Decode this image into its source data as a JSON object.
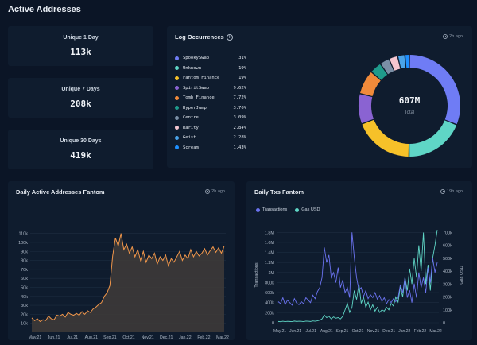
{
  "page": {
    "title": "Active Addresses"
  },
  "stats": [
    {
      "label": "Unique 1 Day",
      "value": "113k"
    },
    {
      "label": "Unique 7 Days",
      "value": "208k"
    },
    {
      "label": "Unique 30 Days",
      "value": "419k"
    }
  ],
  "log_occurrences": {
    "title": "Log Occurrences",
    "time": "2h ago",
    "total_value": "607M",
    "total_label": "Total",
    "chart_data": {
      "type": "pie",
      "labels": [
        "SpookySwap",
        "Unknown",
        "Fantom Finance",
        "SpiritSwap",
        "Tomb Finance",
        "HyperJump",
        "Centre",
        "Rarity",
        "Geist",
        "Scream"
      ],
      "display_values": [
        "31%",
        "19%",
        "19%",
        "9.62%",
        "7.72%",
        "3.76%",
        "3.09%",
        "2.84%",
        "2.28%",
        "1.43%"
      ],
      "values": [
        31,
        19,
        19,
        9.62,
        7.72,
        3.76,
        3.09,
        2.84,
        2.28,
        1.43
      ],
      "colors": [
        "#6f7cf5",
        "#5fd6c6",
        "#f6c129",
        "#8a63d2",
        "#f08a3a",
        "#1f9b8c",
        "#7a8fa6",
        "#f5c6d0",
        "#4aa3e8",
        "#1e90ff"
      ]
    }
  },
  "daily_active": {
    "title": "Daily Active Addresses Fantom",
    "time": "2h ago",
    "chart_data": {
      "type": "area",
      "x_labels": [
        "May.21",
        "Jun.21",
        "Jul.21",
        "Aug.21",
        "Sep.21",
        "Oct.21",
        "Nov.21",
        "Dec.21",
        "Jan.22",
        "Feb.22",
        "Mar.22"
      ],
      "y_ticks": [
        "10k",
        "20k",
        "30k",
        "40k",
        "50k",
        "60k",
        "70k",
        "80k",
        "90k",
        "100k",
        "110k"
      ],
      "ylim": [
        0,
        115000
      ],
      "series": [
        {
          "values": [
            16000,
            13000,
            15000,
            12000,
            14000,
            13000,
            18000,
            15000,
            14000,
            19000,
            18000,
            20000,
            17000,
            22000,
            20000,
            19000,
            21000,
            19000,
            23000,
            20000,
            24000,
            22000,
            26000,
            28000,
            31000,
            33000,
            40000,
            44000,
            52000,
            85000,
            105000,
            96000,
            110000,
            92000,
            98000,
            88000,
            95000,
            84000,
            92000,
            80000,
            90000,
            78000,
            86000,
            82000,
            88000,
            76000,
            84000,
            80000,
            86000,
            74000,
            82000,
            78000,
            84000,
            90000,
            80000,
            86000,
            82000,
            92000,
            84000,
            90000,
            85000,
            88000,
            93000,
            86000,
            91000,
            95000,
            89000,
            94000,
            88000,
            96000
          ]
        }
      ]
    }
  },
  "daily_txs": {
    "title": "Daily Txs Fantom",
    "time": "19h ago",
    "legend": [
      {
        "name": "Transactions",
        "color": "#6b73f0"
      },
      {
        "name": "Gas USD",
        "color": "#5fd6c6"
      }
    ],
    "chart_data": {
      "type": "line",
      "x_labels": [
        "May.21",
        "Jun.21",
        "Jul.21",
        "Aug.21",
        "Sep.21",
        "Oct.21",
        "Nov.21",
        "Dec.21",
        "Jan.22",
        "Feb.22",
        "Mar.22"
      ],
      "ylabel": "Transactions",
      "ylabel_right": "Gas USD",
      "y_ticks": [
        "0",
        "200k",
        "400k",
        "600k",
        "800k",
        "1M",
        "1.2M",
        "1.4M",
        "1.6M",
        "1.8M"
      ],
      "y_ticks_right": [
        "0",
        "100k",
        "200k",
        "300k",
        "400k",
        "500k",
        "600k",
        "700k"
      ],
      "ylim": [
        0,
        1900000
      ],
      "ylim_right": [
        0,
        740000
      ],
      "series": [
        {
          "name": "Transactions",
          "values": [
            420000,
            380000,
            500000,
            360000,
            450000,
            400000,
            350000,
            480000,
            390000,
            360000,
            420000,
            380000,
            500000,
            450000,
            400000,
            550000,
            480000,
            620000,
            700000,
            900000,
            1500000,
            1200000,
            1350000,
            900000,
            1000000,
            800000,
            1100000,
            700000,
            850000,
            600000,
            700000,
            500000,
            1800000,
            1300000,
            900000,
            650000,
            700000,
            520000,
            640000,
            480000,
            560000,
            500000,
            600000,
            470000,
            540000,
            420000,
            500000,
            380000,
            460000,
            400000,
            480000,
            420000,
            500000,
            760000,
            600000,
            900000,
            500000,
            650000,
            400000,
            780000,
            500000,
            1000000,
            700000,
            900000,
            600000,
            1100000,
            800000,
            1300000,
            1000000,
            1200000
          ]
        },
        {
          "name": "Gas USD",
          "values": [
            10000,
            8000,
            12000,
            9000,
            11000,
            10000,
            9000,
            13000,
            10000,
            12000,
            11000,
            9000,
            13000,
            12000,
            10000,
            14000,
            12000,
            15000,
            20000,
            30000,
            60000,
            40000,
            50000,
            30000,
            45000,
            35000,
            40000,
            30000,
            50000,
            100000,
            150000,
            80000,
            120000,
            250000,
            180000,
            300000,
            150000,
            200000,
            120000,
            160000,
            100000,
            140000,
            90000,
            120000,
            80000,
            100000,
            90000,
            120000,
            100000,
            150000,
            130000,
            200000,
            160000,
            280000,
            200000,
            350000,
            250000,
            420000,
            300000,
            500000,
            350000,
            600000,
            400000,
            700000,
            300000,
            450000,
            250000,
            500000,
            600000,
            720000
          ]
        }
      ]
    }
  }
}
